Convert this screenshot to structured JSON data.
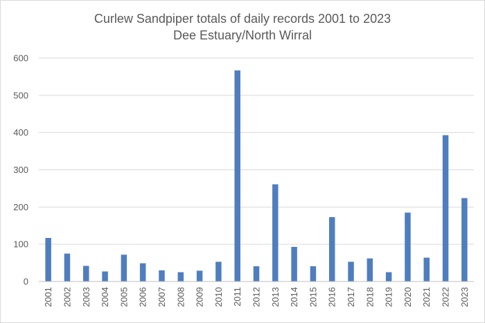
{
  "chart_data": {
    "type": "bar",
    "title": "Curlew Sandpiper totals of daily records 2001 to 2023",
    "subtitle": "Dee Estuary/North Wirral",
    "xlabel": "",
    "ylabel": "",
    "ylim": [
      0,
      600
    ],
    "yticks": [
      0,
      100,
      200,
      300,
      400,
      500,
      600
    ],
    "grid": true,
    "legend": "none",
    "bar_color": "#4F7EBF",
    "categories": [
      "2001",
      "2002",
      "2003",
      "2004",
      "2005",
      "2006",
      "2007",
      "2008",
      "2009",
      "2010",
      "2011",
      "2012",
      "2013",
      "2014",
      "2015",
      "2016",
      "2017",
      "2018",
      "2019",
      "2020",
      "2021",
      "2022",
      "2023"
    ],
    "values": [
      117,
      75,
      42,
      27,
      72,
      49,
      30,
      25,
      29,
      53,
      567,
      41,
      261,
      93,
      41,
      173,
      53,
      62,
      25,
      185,
      64,
      393,
      224
    ]
  }
}
